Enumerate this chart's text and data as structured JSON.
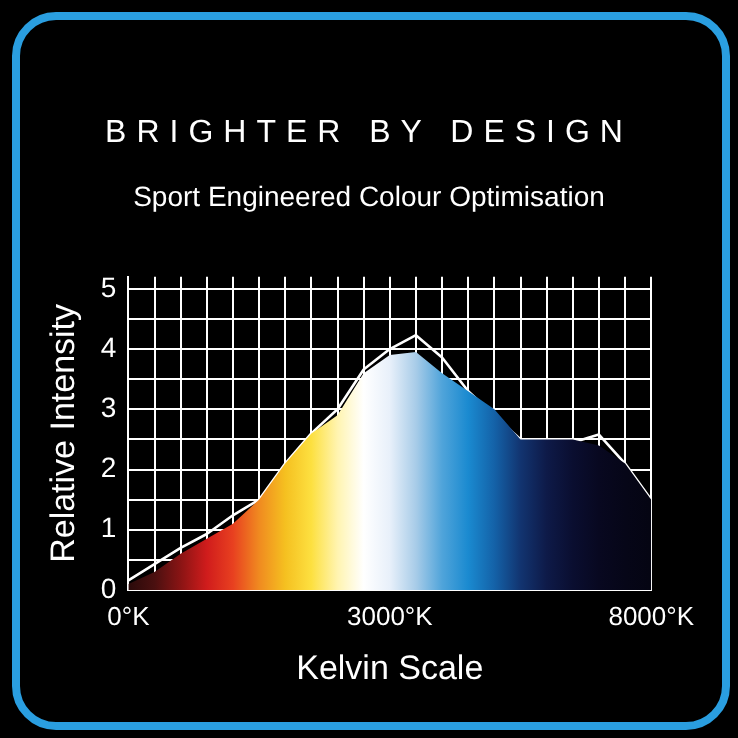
{
  "chart_data": {
    "type": "area",
    "title": "BRIGHTER BY DESIGN",
    "subtitle": "Sport Engineered Colour Optimisation",
    "xlabel": "Kelvin Scale",
    "ylabel": "Relative Intensity",
    "categories": [
      "0°K",
      null,
      null,
      null,
      null,
      null,
      null,
      null,
      null,
      null,
      "3000°K",
      null,
      null,
      null,
      null,
      null,
      null,
      null,
      null,
      null,
      "8000°K"
    ],
    "ylim": [
      0,
      5.2
    ],
    "yticks": [
      0,
      {
        "value": 0.5,
        "label": null
      },
      1,
      {
        "value": 1.5,
        "label": null
      },
      2,
      {
        "value": 2.5,
        "label": null
      },
      3,
      {
        "value": 3.5,
        "label": null
      },
      4,
      {
        "value": 4.5,
        "label": null
      },
      5
    ],
    "grid": true,
    "legend": false,
    "marker": "none",
    "series": [
      {
        "color": "#e0ecf8",
        "colors": [
          "#2a0a0a",
          "#4a1010",
          "#8a1414",
          "#d01c1c",
          "#e84020",
          "#f08a20",
          "#f5c020",
          "#fde040",
          "#fff4b0",
          "#ffffff",
          "#e8f0fa",
          "#a8cce8",
          "#50a4da",
          "#1a8ad0",
          "#1462a8",
          "#123470",
          "#0e1a48",
          "#0a0e30",
          "#080820",
          "#060618",
          "#050512"
        ],
        "values": [
          0.1,
          0.3,
          0.6,
          0.85,
          1.1,
          1.5,
          2.1,
          2.6,
          2.9,
          3.6,
          3.9,
          3.95,
          3.6,
          3.3,
          3.0,
          2.5,
          2.5,
          2.5,
          2.4,
          2.1,
          1.5
        ]
      },
      {
        "type": "line",
        "color": "#ffffff",
        "line_style": "solid",
        "values": [
          0.16,
          0.43,
          0.7,
          0.93,
          1.24,
          1.5,
          2.1,
          2.6,
          3.0,
          3.66,
          4.0,
          4.23,
          3.86,
          3.3,
          2.9,
          2.5,
          2.47,
          2.45,
          2.58,
          2.1,
          1.5
        ]
      }
    ]
  }
}
